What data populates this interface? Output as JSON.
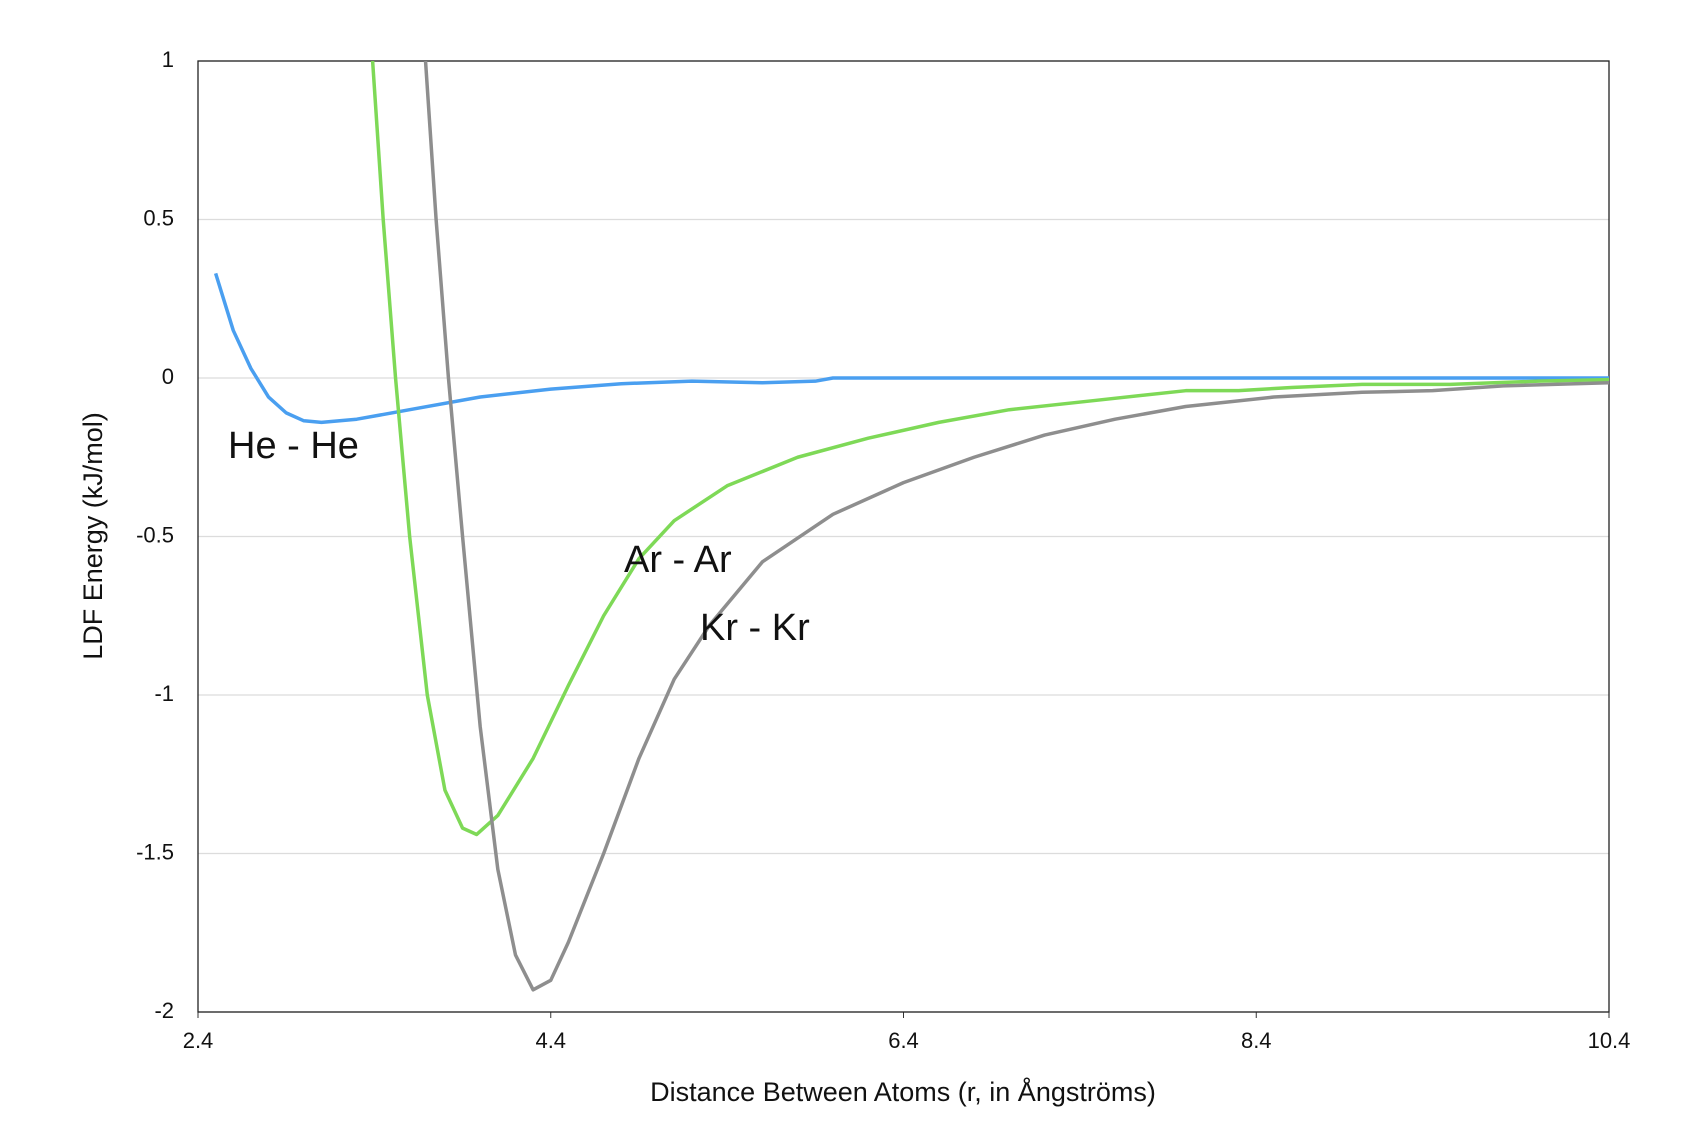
{
  "chart_data": {
    "type": "line",
    "x_label": "Distance Between Atoms  (r, in Ångströms)",
    "y_label": "LDF Energy (kJ/mol)",
    "xlim": [
      2.4,
      10.4
    ],
    "xticks": [
      2.4,
      4.4,
      6.4,
      8.4,
      10.4
    ],
    "ylim": [
      -2,
      1
    ],
    "yticks": [
      -2,
      -1.5,
      -1,
      -0.5,
      0,
      0.5,
      1
    ],
    "grid": true,
    "series": [
      {
        "name": "He - He",
        "color": "#4a9ff0",
        "x": [
          2.5,
          2.6,
          2.7,
          2.8,
          2.9,
          3.0,
          3.1,
          3.3,
          3.6,
          4.0,
          4.4,
          4.8,
          5.2,
          5.6,
          5.9,
          6.0,
          10.4
        ],
        "values": [
          0.33,
          0.15,
          0.03,
          -0.06,
          -0.11,
          -0.135,
          -0.14,
          -0.13,
          -0.1,
          -0.06,
          -0.035,
          -0.018,
          -0.01,
          -0.015,
          -0.01,
          0,
          0
        ]
      },
      {
        "name": "Ar - Ar",
        "color": "#7ed957",
        "x": [
          3.39,
          3.45,
          3.52,
          3.6,
          3.7,
          3.8,
          3.9,
          3.98,
          4.1,
          4.3,
          4.5,
          4.7,
          4.9,
          5.1,
          5.4,
          5.8,
          6.2,
          6.6,
          7.0,
          7.5,
          8.0,
          8.3,
          8.6,
          9.0,
          9.5,
          10.0,
          10.4
        ],
        "values": [
          1,
          0.5,
          0,
          -0.5,
          -1.0,
          -1.3,
          -1.42,
          -1.44,
          -1.38,
          -1.2,
          -0.97,
          -0.75,
          -0.57,
          -0.45,
          -0.34,
          -0.25,
          -0.19,
          -0.14,
          -0.1,
          -0.07,
          -0.04,
          -0.04,
          -0.03,
          -0.02,
          -0.02,
          -0.01,
          -0.005
        ]
      },
      {
        "name": "Kr - Kr",
        "color": "#8e8e8e",
        "x": [
          3.69,
          3.75,
          3.82,
          3.9,
          4.0,
          4.1,
          4.2,
          4.3,
          4.4,
          4.5,
          4.7,
          4.9,
          5.1,
          5.3,
          5.6,
          6.0,
          6.4,
          6.8,
          7.2,
          7.6,
          8.0,
          8.5,
          9.0,
          9.4,
          9.8,
          10.4
        ],
        "values": [
          1,
          0.5,
          0,
          -0.5,
          -1.1,
          -1.55,
          -1.82,
          -1.93,
          -1.9,
          -1.78,
          -1.5,
          -1.2,
          -0.95,
          -0.78,
          -0.58,
          -0.43,
          -0.33,
          -0.25,
          -0.18,
          -0.13,
          -0.09,
          -0.06,
          -0.045,
          -0.04,
          -0.025,
          -0.015
        ]
      }
    ]
  }
}
